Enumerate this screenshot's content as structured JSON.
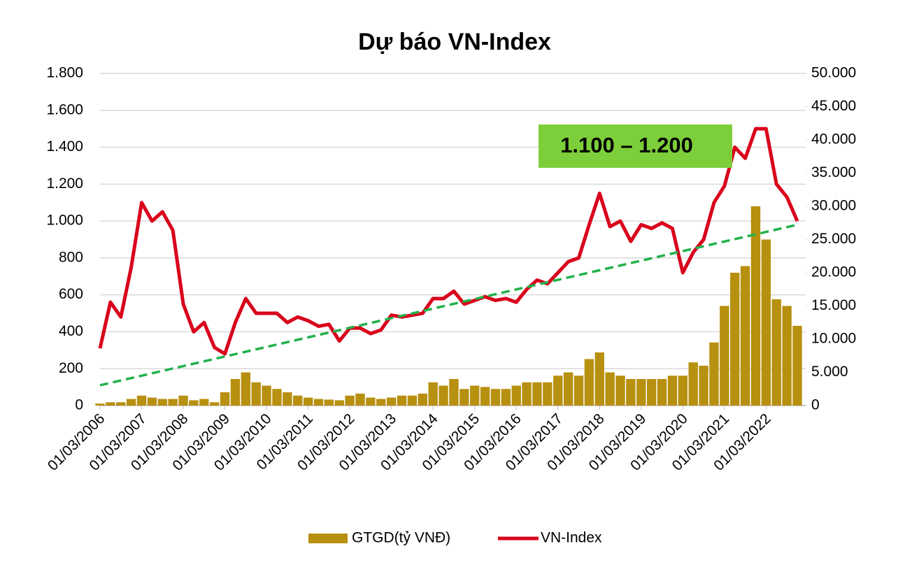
{
  "chart_data": {
    "type": "bar_line",
    "title": "Dự báo VN-Index",
    "categories": [
      "01/03/2006",
      null,
      null,
      null,
      "01/03/2007",
      null,
      null,
      null,
      "01/03/2008",
      null,
      null,
      null,
      "01/03/2009",
      null,
      null,
      null,
      "01/03/2010",
      null,
      null,
      null,
      "01/03/2011",
      null,
      null,
      null,
      "01/03/2012",
      null,
      null,
      null,
      "01/03/2013",
      null,
      null,
      null,
      "01/03/2014",
      null,
      null,
      null,
      "01/03/2015",
      null,
      null,
      null,
      "01/03/2016",
      null,
      null,
      null,
      "01/03/2017",
      null,
      null,
      null,
      "01/03/2018",
      null,
      null,
      null,
      "01/03/2019",
      null,
      null,
      null,
      "01/03/2020",
      null,
      null,
      null,
      "01/03/2021",
      null,
      null,
      null,
      "01/03/2022",
      null,
      null,
      null
    ],
    "series": [
      {
        "name": "GTGD(tỷ VNĐ)",
        "type": "bar",
        "axis": "y2",
        "color": "#b8900f",
        "values": [
          300,
          500,
          500,
          1000,
          1500,
          1200,
          1000,
          1000,
          1500,
          800,
          1000,
          500,
          2000,
          4000,
          5000,
          3500,
          3000,
          2500,
          2000,
          1500,
          1200,
          1000,
          900,
          800,
          1500,
          1800,
          1200,
          1000,
          1200,
          1500,
          1500,
          1800,
          3500,
          3000,
          4000,
          2500,
          3000,
          2800,
          2500,
          2500,
          3000,
          3500,
          3500,
          3500,
          4500,
          5000,
          4500,
          7000,
          8000,
          5000,
          4500,
          4000,
          4000,
          4000,
          4000,
          4500,
          4500,
          6500,
          6000,
          9500,
          15000,
          20000,
          21000,
          30000,
          25000,
          16000,
          15000,
          12000
        ]
      },
      {
        "name": "VN-Index",
        "type": "line",
        "color": "#d9001b",
        "values": [
          310,
          560,
          480,
          750,
          1100,
          1000,
          1050,
          950,
          550,
          400,
          450,
          315,
          280,
          450,
          580,
          500,
          500,
          500,
          450,
          480,
          460,
          430,
          440,
          350,
          420,
          420,
          390,
          410,
          490,
          480,
          490,
          500,
          580,
          580,
          620,
          550,
          570,
          590,
          570,
          580,
          560,
          630,
          680,
          660,
          720,
          780,
          800,
          980,
          1150,
          970,
          1000,
          890,
          980,
          960,
          990,
          960,
          720,
          830,
          900,
          1100,
          1190,
          1400,
          1340,
          1500,
          1500,
          1200,
          1130,
          1000
        ]
      }
    ],
    "trendline": {
      "color": "#22b14c",
      "values": [
        110,
        980
      ]
    },
    "annotation": {
      "text": "1.100 – 1.200",
      "color": "#7ccf3a"
    },
    "ylim": [
      0,
      1800
    ],
    "yticks": [
      0,
      200,
      400,
      600,
      800,
      {
        "value": 1000,
        "label": "1.000"
      },
      {
        "value": 1200,
        "label": "1.200"
      },
      {
        "value": 1400,
        "label": "1.400"
      },
      {
        "value": 1600,
        "label": "1.600"
      },
      {
        "value": 1800,
        "label": "1.800"
      }
    ],
    "y2lim": [
      0,
      50000
    ],
    "y2ticks": [
      0,
      {
        "value": 5000,
        "label": "5.000"
      },
      {
        "value": 10000,
        "label": "10.000"
      },
      {
        "value": 15000,
        "label": "15.000"
      },
      {
        "value": 20000,
        "label": "20.000"
      },
      {
        "value": 25000,
        "label": "25.000"
      },
      {
        "value": 30000,
        "label": "30.000"
      },
      {
        "value": 35000,
        "label": "35.000"
      },
      {
        "value": 40000,
        "label": "40.000"
      },
      {
        "value": 45000,
        "label": "45.000"
      },
      {
        "value": 50000,
        "label": "50.000"
      }
    ],
    "grid": true,
    "legend": "bottom"
  }
}
